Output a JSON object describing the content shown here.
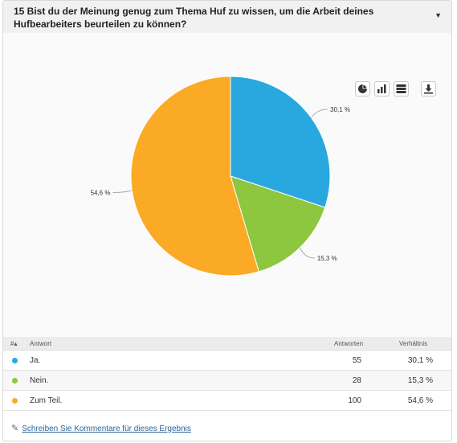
{
  "question": {
    "title": "15 Bist du der Meinung genug zum Thema Huf zu wissen, um die Arbeit deines Hufbearbeiters beurteilen zu können?"
  },
  "toolbar": {
    "icons": [
      "pie-chart-icon",
      "bar-chart-icon",
      "table-icon",
      "download-icon"
    ]
  },
  "chart_data": {
    "type": "pie",
    "categories": [
      "Ja.",
      "Nein.",
      "Zum Teil."
    ],
    "values": [
      30.1,
      15.3,
      54.6
    ],
    "value_labels": [
      "30,1 %",
      "15,3 %",
      "54,6 %"
    ],
    "colors": [
      "#29a8e0",
      "#8dc63f",
      "#fbaa26"
    ]
  },
  "table": {
    "headers": {
      "num": "#",
      "answer": "Antwort",
      "responses": "Antworten",
      "ratio": "Verhältnis"
    },
    "rows": [
      {
        "answer": "Ja.",
        "responses": "55",
        "ratio": "30,1 %",
        "color": "#29a8e0"
      },
      {
        "answer": "Nein.",
        "responses": "28",
        "ratio": "15,3 %",
        "color": "#8dc63f"
      },
      {
        "answer": "Zum Teil.",
        "responses": "100",
        "ratio": "54,6 %",
        "color": "#fbaa26"
      }
    ]
  },
  "footer": {
    "comment_link": "Schreiben Sie Kommentare für dieses Ergebnis"
  }
}
